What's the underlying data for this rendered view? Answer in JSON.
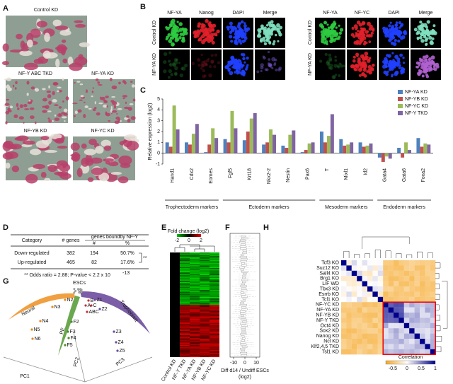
{
  "panel_labels": [
    "A",
    "B",
    "C",
    "D",
    "E",
    "F",
    "G",
    "H"
  ],
  "panel_a": {
    "captions": [
      "Control KD",
      "NF-Y ABC TKD",
      "NF-YA KD",
      "NF-YB KD",
      "NF-YC KD"
    ]
  },
  "panel_b": {
    "left_headers": [
      "NF-YA",
      "Nanog",
      "DAPI",
      "Merge"
    ],
    "right_headers": [
      "NF-YA",
      "NF-YC",
      "DAPI",
      "Merge"
    ],
    "row_labels": [
      "Control KD",
      "NF-YA KD"
    ]
  },
  "panel_c": {
    "type": "bar",
    "ylabel": "Relative expression (log2)",
    "categories": [
      "Hand1",
      "Cdx2",
      "Eomes",
      "Fgf5",
      "Krt18",
      "Nkx2-2",
      "Nestin",
      "Pax6",
      "T",
      "Mixl1",
      "Id2",
      "Gata4",
      "Gata6",
      "Foxa2"
    ],
    "series": [
      {
        "name": "NF-YA KD",
        "color": "#4f81bd",
        "values": [
          1.0,
          1.0,
          0.1,
          1.3,
          1.2,
          0.8,
          0.7,
          0.1,
          2.0,
          1.3,
          1.0,
          -0.4,
          0.5,
          1.4
        ]
      },
      {
        "name": "NF-YB KD",
        "color": "#c0504d",
        "values": [
          0.6,
          0.8,
          0.8,
          1.0,
          2.0,
          1.0,
          0.5,
          0.3,
          1.0,
          0.7,
          0.6,
          -0.8,
          -0.4,
          0.6
        ]
      },
      {
        "name": "NF-YC KD",
        "color": "#9bbb59",
        "values": [
          4.4,
          1.8,
          2.3,
          3.9,
          3.2,
          2.2,
          1.7,
          0.9,
          1.6,
          0.8,
          0.7,
          -0.3,
          1.0,
          0.9
        ]
      },
      {
        "name": "NF-Y TKD",
        "color": "#8064a2",
        "values": [
          2.2,
          2.7,
          1.4,
          2.3,
          3.7,
          1.7,
          2.1,
          1.0,
          3.6,
          1.0,
          0.9,
          -0.5,
          0.3,
          0.8
        ]
      }
    ],
    "ylim": [
      -1,
      5
    ],
    "yticks": [
      -1,
      0,
      1,
      2,
      3,
      4,
      5
    ],
    "groups": [
      "Trophectoderm markers",
      "Ectoderm markers",
      "Mesoderm markers",
      "Endoderm markers"
    ]
  },
  "panel_d": {
    "headers": [
      "Category",
      "# genes",
      "genes boundby NF-Y",
      "#",
      "%"
    ],
    "rows": [
      [
        "Down-regulated",
        "382",
        "194",
        "50.7%"
      ],
      [
        "Up-regulated",
        "465",
        "82",
        "17.6%"
      ]
    ],
    "significance": "**",
    "footnote": "** Odds ratio = 2.88; P-value < 2.2 x 10",
    "footnote_exponent": "-13"
  },
  "panel_e": {
    "legend_title": "Fold change (log2)",
    "legend_ticks": [
      -2,
      0,
      2
    ],
    "columns": [
      "Control KD",
      "NF-Y TKD",
      "NF-YA KD",
      "NF-YB KD",
      "NF-YC KD"
    ]
  },
  "panel_f": {
    "xticks": [
      -10,
      0,
      10
    ],
    "xlabel": [
      "Diff d14 / Undiff ESCs",
      "(log2)"
    ]
  },
  "panel_g": {
    "regions": [
      "ESCs",
      "Neural",
      "PE",
      "Trophoblast"
    ],
    "axes": [
      "PC1",
      "PC2",
      "PC3"
    ],
    "points": [
      "N2",
      "N3",
      "N4",
      "N5",
      "N6",
      "F2",
      "F3",
      "F4",
      "F5",
      "A",
      "B",
      "C",
      "ABC",
      "Z1",
      "Z2",
      "Z3",
      "Z4",
      "Z5"
    ]
  },
  "panel_h": {
    "rows": [
      "Tcf3 KO",
      "Suz12 KO",
      "Sall4 KO",
      "Brg1 KO",
      "LIF WD",
      "Tbx3 KD",
      "Esrrb KO",
      "Tcl1 KO",
      "NF-YC KD",
      "NF-YA KD",
      "NF-YB KD",
      "NF-Y TKD",
      "Oct4 KD",
      "Sox2 KD",
      "Nanog KD",
      "Ncl KD",
      "Klf2,4,5 TKD",
      "Tsl1 KD"
    ],
    "colorbar_title": "Correlation",
    "colorbar_ticks": [
      -0.5,
      0,
      0.5,
      1
    ]
  }
}
